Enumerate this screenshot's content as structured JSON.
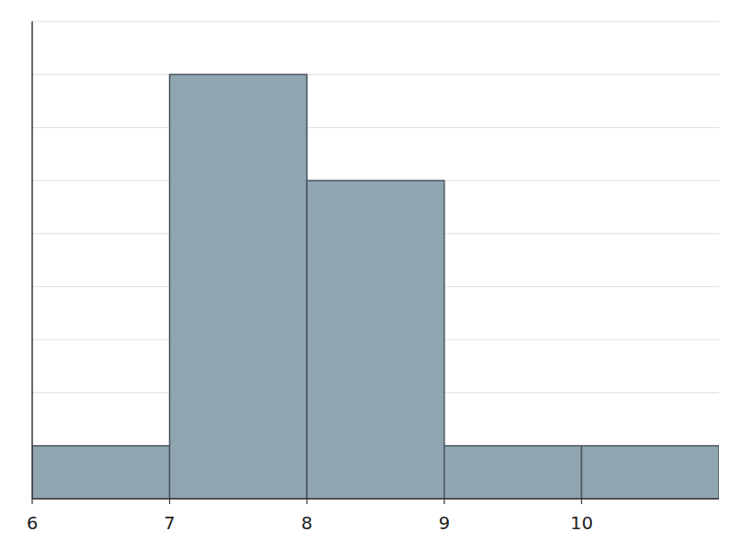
{
  "chart_data": {
    "type": "histogram",
    "bins": [
      6,
      7,
      8,
      9,
      10,
      11
    ],
    "values": [
      1,
      8,
      6,
      1,
      1
    ],
    "color": "#8fa5b0",
    "xlim": [
      6,
      11
    ],
    "ylim": [
      0,
      9
    ],
    "xticks": [
      6,
      7,
      8,
      9,
      10
    ],
    "yticks": [
      0,
      1,
      2,
      3,
      4,
      5,
      6,
      7,
      8,
      9
    ],
    "grid": true,
    "tick_labels": "x"
  }
}
